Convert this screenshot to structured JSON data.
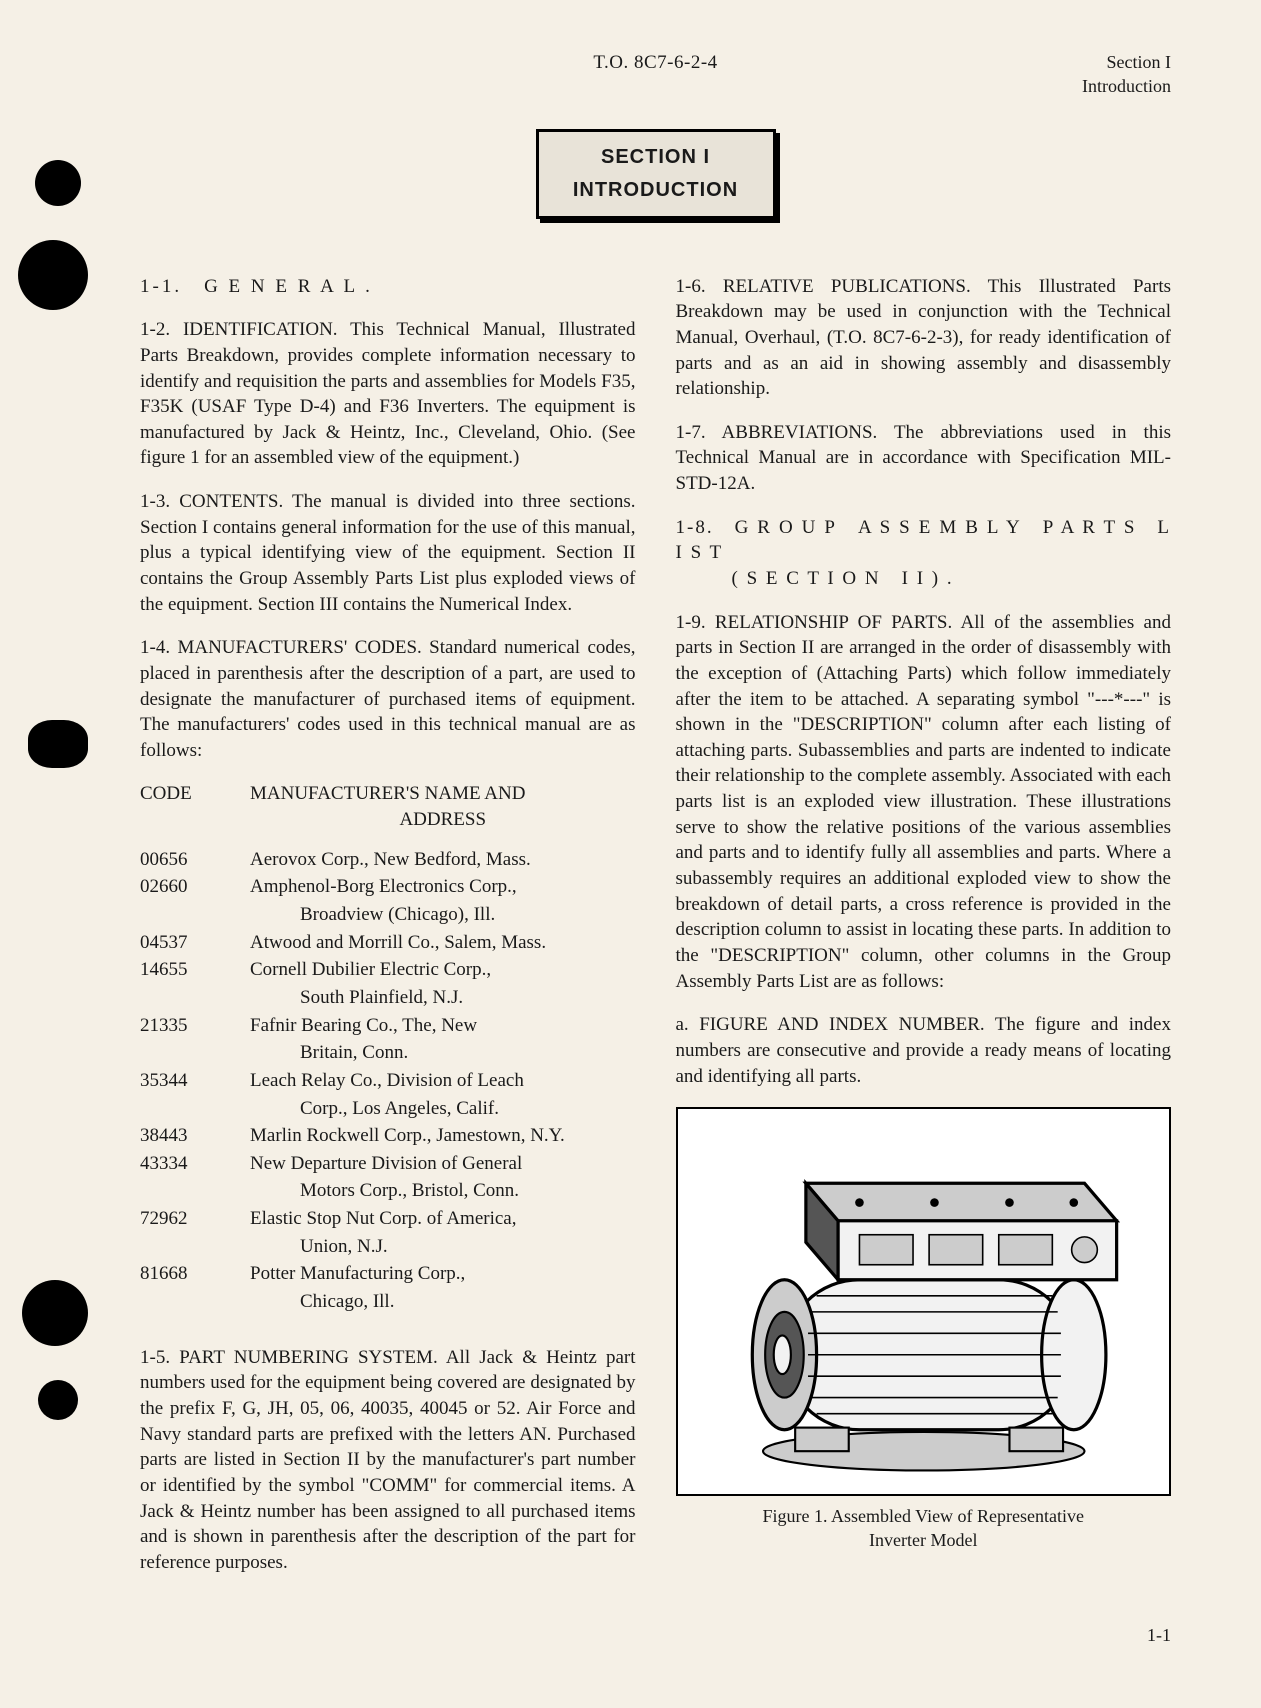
{
  "header": {
    "center": "T.O. 8C7-6-2-4",
    "right_line1": "Section I",
    "right_line2": "Introduction"
  },
  "banner": {
    "line1": "SECTION I",
    "line2": "INTRODUCTION"
  },
  "left_col": {
    "p1_1": "1-1. G E N E R A L .",
    "p1_2": "1-2. IDENTIFICATION. This Technical Manual, Illustrated Parts Breakdown, provides complete information necessary to identify and requisition the parts and assemblies for Models F35, F35K (USAF Type D-4) and F36 Inverters. The equipment is manufactured by Jack & Heintz, Inc., Cleveland, Ohio. (See figure 1 for an assembled view of the equipment.)",
    "p1_3": "1-3. CONTENTS. The manual is divided into three sections. Section I contains general information for the use of this manual, plus a typical identifying view of the equipment. Section II contains the Group Assembly Parts List plus exploded views of the equipment. Section III contains the Numerical Index.",
    "p1_4": "1-4. MANUFACTURERS' CODES. Standard numerical codes, placed in parenthesis after the description of a part, are used to designate the manufacturer of purchased items of equipment. The manufacturers' codes used in this technical manual are as follows:",
    "code_header_c1": "CODE",
    "code_header_c2a": "MANUFACTURER'S NAME AND",
    "code_header_c2b": "ADDRESS",
    "codes": [
      {
        "code": "00656",
        "name": "Aerovox Corp., New Bedford, Mass."
      },
      {
        "code": "02660",
        "name": "Amphenol-Borg Electronics Corp.,",
        "extra": "Broadview (Chicago), Ill."
      },
      {
        "code": "04537",
        "name": "Atwood and Morrill Co., Salem, Mass."
      },
      {
        "code": "14655",
        "name": "Cornell Dubilier Electric Corp.,",
        "extra": "South Plainfield, N.J."
      },
      {
        "code": "21335",
        "name": "Fafnir Bearing Co., The, New",
        "extra": "Britain, Conn."
      },
      {
        "code": "35344",
        "name": "Leach Relay Co., Division of Leach",
        "extra": "Corp., Los Angeles, Calif."
      },
      {
        "code": "38443",
        "name": "Marlin Rockwell Corp., Jamestown, N.Y."
      },
      {
        "code": "43334",
        "name": "New Departure Division of General",
        "extra": "Motors Corp., Bristol, Conn."
      },
      {
        "code": "72962",
        "name": "Elastic Stop Nut Corp. of America,",
        "extra": "Union, N.J."
      },
      {
        "code": "81668",
        "name": "Potter Manufacturing Corp.,",
        "extra": "Chicago, Ill."
      }
    ],
    "p1_5": "1-5. PART NUMBERING SYSTEM. All Jack & Heintz part numbers used for the equipment being covered are designated by the prefix F, G, JH, 05, 06, 40035, 40045 or 52. Air Force and Navy standard parts are prefixed with the letters AN. Purchased parts are listed in Section II by the manufacturer's part number or identified by the symbol \"COMM\" for commercial items. A Jack & Heintz number has been assigned to all purchased items and is shown in parenthesis after the description of the part for reference purposes."
  },
  "right_col": {
    "p1_6": "1-6. RELATIVE PUBLICATIONS. This Illustrated Parts Breakdown may be used in conjunction with the Technical Manual, Overhaul, (T.O. 8C7-6-2-3), for ready identification of parts and as an aid in showing assembly and disassembly relationship.",
    "p1_7": "1-7. ABBREVIATIONS. The abbreviations used in this Technical Manual are in accordance with Specification MIL-STD-12A.",
    "p1_8_a": "1-8. G R O U P A S S E M B L Y P A R T S L I S T",
    "p1_8_b": "( S E C T I O N I I ) .",
    "p1_9": "1-9. RELATIONSHIP OF PARTS. All of the assemblies and parts in Section II are arranged in the order of disassembly with the exception of (Attaching Parts) which follow immediately after the item to be attached. A separating symbol \"---*---\" is shown in the \"DESCRIPTION\" column after each listing of attaching parts. Subassemblies and parts are indented to indicate their relationship to the complete assembly. Associated with each parts list is an exploded view illustration. These illustrations serve to show the relative positions of the various assemblies and parts and to identify fully all assemblies and parts. Where a subassembly requires an additional exploded view to show the breakdown of detail parts, a cross reference is provided in the description column to assist in locating these parts. In addition to the \"DESCRIPTION\" column, other columns in the Group Assembly Parts List are as follows:",
    "p1_9a": "a. FIGURE AND INDEX NUMBER. The figure and index numbers are consecutive and provide a ready means of locating and identifying all parts.",
    "figure_caption_a": "Figure 1. Assembled View of Representative",
    "figure_caption_b": "Inverter Model"
  },
  "page_number": "1-1",
  "figure": {
    "bg": "#ffffff",
    "stroke": "#000000",
    "fill_light": "#f2f2f2",
    "fill_mid": "#cccccc",
    "fill_dark": "#555555"
  }
}
